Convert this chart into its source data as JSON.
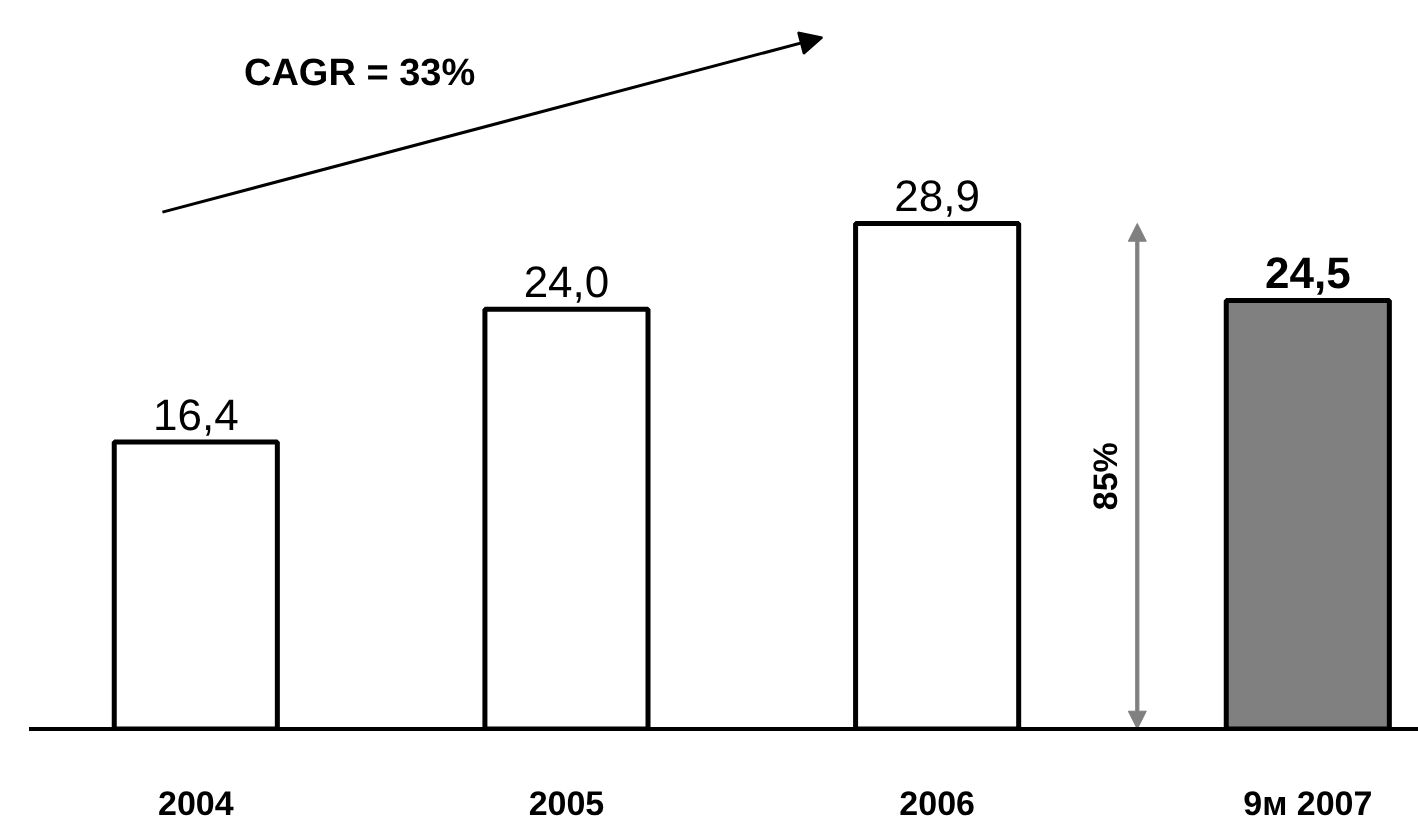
{
  "chart_data": {
    "type": "bar",
    "categories": [
      "2004",
      "2005",
      "2006",
      "9м 2007"
    ],
    "values": [
      16.4,
      24.0,
      28.9,
      24.5
    ],
    "value_labels": [
      "16,4",
      "24,0",
      "28,9",
      "24,5"
    ],
    "colors": [
      "#ffffff",
      "#ffffff",
      "#ffffff",
      "#808080"
    ],
    "annotations": [
      "CAGR = 33%",
      "85%"
    ],
    "tick_labels": "x"
  }
}
